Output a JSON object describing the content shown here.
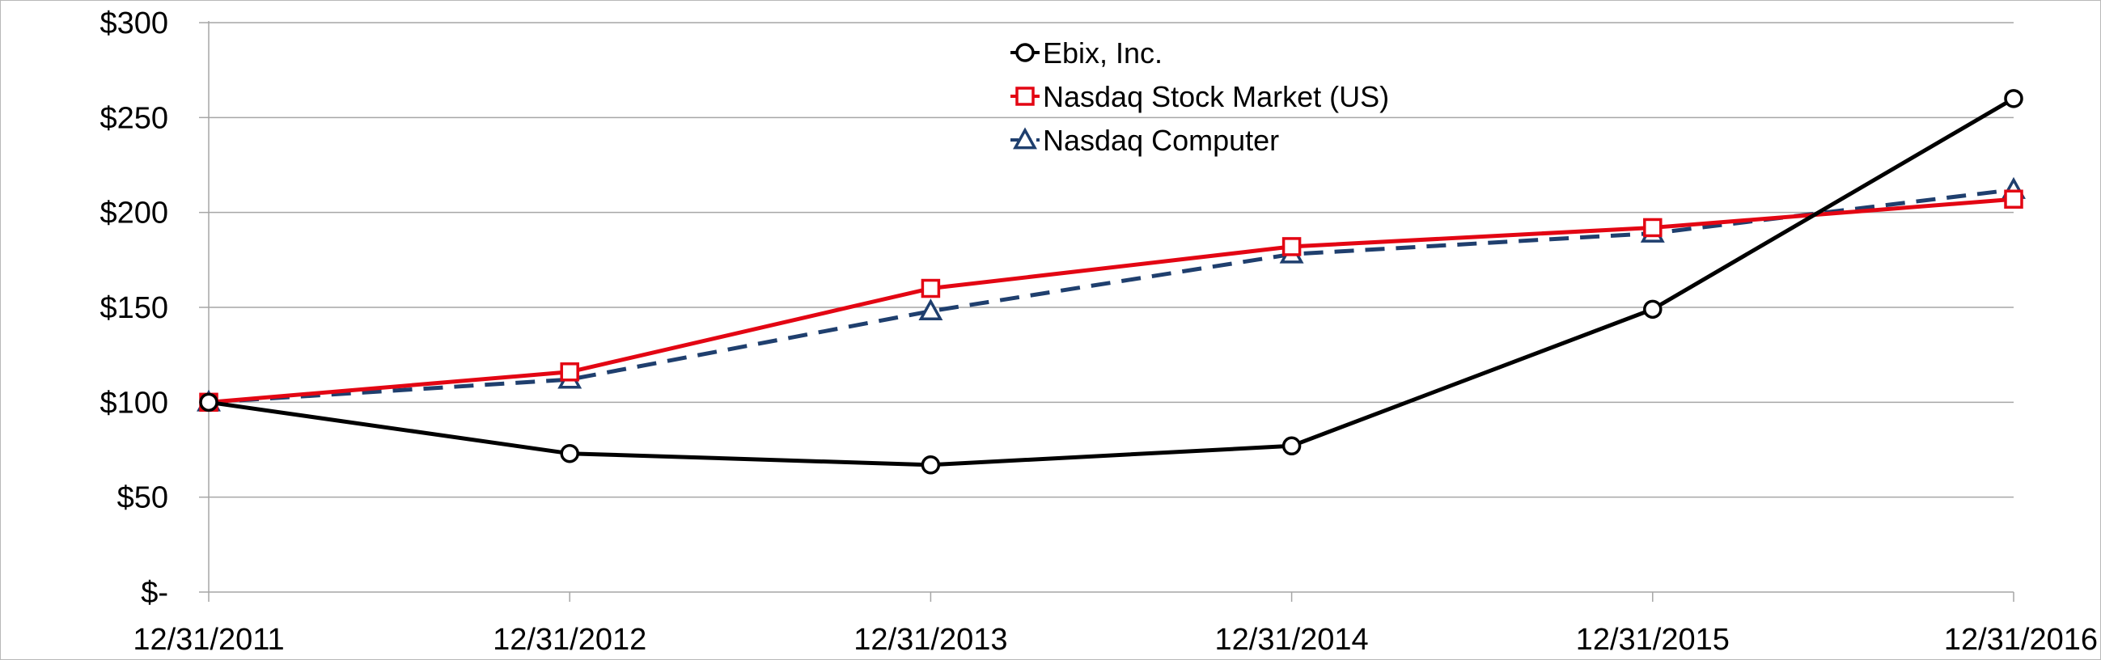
{
  "chart_data": {
    "type": "line",
    "title": "",
    "xlabel": "",
    "ylabel": "",
    "categories": [
      "12/31/2011",
      "12/31/2012",
      "12/31/2013",
      "12/31/2014",
      "12/31/2015",
      "12/31/2016"
    ],
    "y_ticks": [
      0,
      50,
      100,
      150,
      200,
      250,
      300
    ],
    "y_tick_labels": [
      "$-",
      "$50",
      "$100",
      "$150",
      "$200",
      "$250",
      "$300"
    ],
    "ylim": [
      0,
      300
    ],
    "grid": true,
    "legend_position": "top-center",
    "series": [
      {
        "name": "Ebix, Inc.",
        "values": [
          100,
          73,
          67,
          77,
          149,
          260
        ],
        "color": "#000000",
        "marker": "circle",
        "line_style": "solid"
      },
      {
        "name": "Nasdaq Stock Market (US)",
        "values": [
          100,
          116,
          160,
          182,
          192,
          207
        ],
        "color": "#e30613",
        "marker": "square",
        "line_style": "solid"
      },
      {
        "name": "Nasdaq Computer",
        "values": [
          100,
          112,
          148,
          178,
          189,
          212
        ],
        "color": "#1f3f6e",
        "marker": "triangle",
        "line_style": "dashed"
      }
    ]
  }
}
